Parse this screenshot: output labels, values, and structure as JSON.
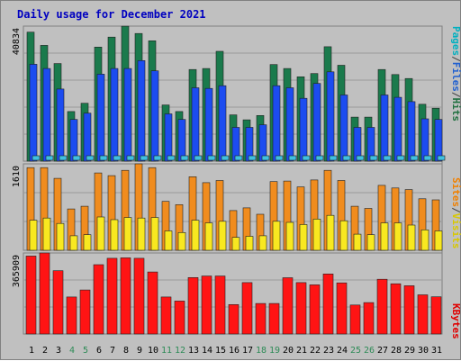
{
  "title": "Daily usage for December 2021",
  "right_labels": {
    "panel1": [
      {
        "text": "Pages",
        "color": "#00b0c0"
      },
      {
        "text": "/",
        "color": "#404040"
      },
      {
        "text": "Files",
        "color": "#2060d0"
      },
      {
        "text": "/",
        "color": "#404040"
      },
      {
        "text": "Hits",
        "color": "#207040"
      }
    ],
    "panel2": [
      {
        "text": "Sites",
        "color": "#f08000"
      },
      {
        "text": "/",
        "color": "#404040"
      },
      {
        "text": "Visits",
        "color": "#d8c800"
      }
    ],
    "panel3": [
      {
        "text": "KBytes",
        "color": "#e00000"
      }
    ]
  },
  "chart_data": [
    {
      "type": "bar",
      "panel": 1,
      "ymax_label": "40834",
      "ylim": [
        0,
        40834
      ],
      "categories": [
        "1",
        "2",
        "3",
        "4",
        "5",
        "6",
        "7",
        "8",
        "9",
        "10",
        "11",
        "12",
        "13",
        "14",
        "15",
        "16",
        "17",
        "18",
        "19",
        "20",
        "21",
        "22",
        "23",
        "24",
        "25",
        "26",
        "27",
        "28",
        "29",
        "30",
        "31"
      ],
      "series": [
        {
          "name": "Hits",
          "color": "#1a7a4c",
          "values": [
            39000,
            35000,
            29500,
            15000,
            17500,
            34500,
            37500,
            40800,
            38600,
            36400,
            17000,
            15000,
            27700,
            28000,
            33200,
            14000,
            12500,
            13800,
            29200,
            28000,
            25500,
            26500,
            34600,
            29000,
            13300,
            13300,
            27700,
            26200,
            25000,
            17200,
            16000
          ]
        },
        {
          "name": "Files",
          "color": "#1c4cf0",
          "values": [
            29300,
            28000,
            21800,
            12600,
            14500,
            26300,
            28000,
            28000,
            30400,
            27300,
            14300,
            12600,
            22200,
            22000,
            22800,
            10200,
            10200,
            11000,
            22800,
            22200,
            19000,
            23500,
            27000,
            20000,
            10200,
            10200,
            20000,
            19300,
            18000,
            12800,
            12600
          ]
        },
        {
          "name": "Pages",
          "color": "#40c0e0",
          "values": [
            1000,
            1000,
            1000,
            1000,
            1000,
            1000,
            1000,
            1000,
            1000,
            1000,
            1000,
            1000,
            1000,
            1000,
            1000,
            1000,
            1000,
            1000,
            1000,
            1000,
            1000,
            1000,
            1000,
            1000,
            1000,
            1000,
            1000,
            1000,
            1000,
            1000,
            1000
          ]
        }
      ]
    },
    {
      "type": "bar",
      "panel": 2,
      "ymax_label": "1610",
      "ylim": [
        0,
        1610
      ],
      "categories": [
        "1",
        "2",
        "3",
        "4",
        "5",
        "6",
        "7",
        "8",
        "9",
        "10",
        "11",
        "12",
        "13",
        "14",
        "15",
        "16",
        "17",
        "18",
        "19",
        "20",
        "21",
        "22",
        "23",
        "24",
        "25",
        "26",
        "27",
        "28",
        "29",
        "30",
        "31"
      ],
      "series": [
        {
          "name": "Sites",
          "color": "#f08c1e",
          "values": [
            1540,
            1540,
            1340,
            770,
            820,
            1440,
            1390,
            1490,
            1610,
            1540,
            910,
            850,
            1370,
            1260,
            1300,
            740,
            790,
            670,
            1280,
            1290,
            1180,
            1310,
            1490,
            1300,
            820,
            780,
            1210,
            1160,
            1130,
            960,
            940
          ]
        },
        {
          "name": "Visits",
          "color": "#f8e820",
          "values": [
            560,
            600,
            500,
            270,
            290,
            620,
            570,
            610,
            600,
            610,
            360,
            330,
            560,
            510,
            540,
            240,
            260,
            270,
            540,
            520,
            480,
            580,
            650,
            550,
            300,
            290,
            510,
            510,
            470,
            380,
            360
          ]
        }
      ]
    },
    {
      "type": "bar",
      "panel": 3,
      "ymax_label": "365909",
      "ylim": [
        0,
        365909
      ],
      "categories": [
        "1",
        "2",
        "3",
        "4",
        "5",
        "6",
        "7",
        "8",
        "9",
        "10",
        "11",
        "12",
        "13",
        "14",
        "15",
        "16",
        "17",
        "18",
        "19",
        "20",
        "21",
        "22",
        "23",
        "24",
        "25",
        "26",
        "27",
        "28",
        "29",
        "30",
        "31"
      ],
      "series": [
        {
          "name": "KBytes",
          "color": "#ff1414",
          "values": [
            352000,
            365909,
            286000,
            167000,
            199000,
            313000,
            342000,
            344000,
            342000,
            280000,
            167000,
            149000,
            255000,
            262000,
            262000,
            133000,
            232000,
            138000,
            138000,
            254000,
            232000,
            222000,
            271000,
            231000,
            131000,
            142000,
            247000,
            227000,
            218000,
            177000,
            168000
          ]
        }
      ]
    }
  ],
  "x_labels": [
    {
      "text": "1",
      "color": "#000000"
    },
    {
      "text": "2",
      "color": "#000000"
    },
    {
      "text": "3",
      "color": "#000000"
    },
    {
      "text": "4",
      "color": "#2e8b57"
    },
    {
      "text": "5",
      "color": "#2e8b57"
    },
    {
      "text": "6",
      "color": "#000000"
    },
    {
      "text": "7",
      "color": "#000000"
    },
    {
      "text": "8",
      "color": "#000000"
    },
    {
      "text": "9",
      "color": "#000000"
    },
    {
      "text": "10",
      "color": "#000000"
    },
    {
      "text": "11",
      "color": "#2e8b57"
    },
    {
      "text": "12",
      "color": "#2e8b57"
    },
    {
      "text": "13",
      "color": "#000000"
    },
    {
      "text": "14",
      "color": "#000000"
    },
    {
      "text": "15",
      "color": "#000000"
    },
    {
      "text": "16",
      "color": "#000000"
    },
    {
      "text": "17",
      "color": "#000000"
    },
    {
      "text": "18",
      "color": "#2e8b57"
    },
    {
      "text": "19",
      "color": "#2e8b57"
    },
    {
      "text": "20",
      "color": "#000000"
    },
    {
      "text": "21",
      "color": "#000000"
    },
    {
      "text": "22",
      "color": "#000000"
    },
    {
      "text": "23",
      "color": "#000000"
    },
    {
      "text": "24",
      "color": "#000000"
    },
    {
      "text": "25",
      "color": "#2e8b57"
    },
    {
      "text": "26",
      "color": "#2e8b57"
    },
    {
      "text": "27",
      "color": "#000000"
    },
    {
      "text": "28",
      "color": "#000000"
    },
    {
      "text": "29",
      "color": "#000000"
    },
    {
      "text": "30",
      "color": "#000000"
    },
    {
      "text": "31",
      "color": "#000000"
    }
  ]
}
